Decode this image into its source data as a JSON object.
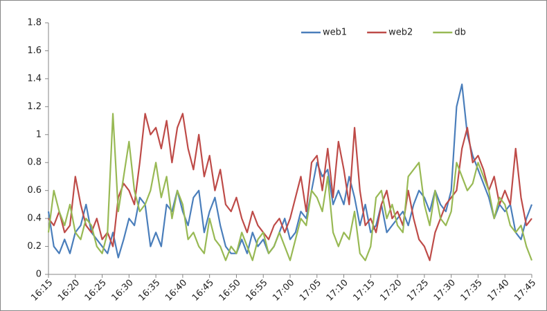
{
  "chart_data": {
    "type": "line",
    "categories": [
      "16:15",
      null,
      null,
      null,
      null,
      "16:20",
      null,
      null,
      null,
      null,
      "16:25",
      null,
      null,
      null,
      null,
      "16:30",
      null,
      null,
      null,
      null,
      "16:35",
      null,
      null,
      null,
      null,
      "16:40",
      null,
      null,
      null,
      null,
      "16:45",
      null,
      null,
      null,
      null,
      "16:50",
      null,
      null,
      null,
      null,
      "16:55",
      null,
      null,
      null,
      null,
      "17:00",
      null,
      null,
      null,
      null,
      "17:05",
      null,
      null,
      null,
      null,
      "17:10",
      null,
      null,
      null,
      null,
      "17:15",
      null,
      null,
      null,
      null,
      "17:20",
      null,
      null,
      null,
      null,
      "17:25",
      null,
      null,
      null,
      null,
      "17:30",
      null,
      null,
      null,
      null,
      "17:35",
      null,
      null,
      null,
      null,
      "17:40",
      null,
      null,
      null,
      null,
      "17:45"
    ],
    "series": [
      {
        "name": "web1",
        "color": "#4a7ebb",
        "values": [
          0.45,
          0.2,
          0.15,
          0.25,
          0.15,
          0.3,
          0.35,
          0.5,
          0.3,
          0.25,
          0.2,
          0.15,
          0.3,
          0.12,
          0.25,
          0.4,
          0.35,
          0.55,
          0.5,
          0.2,
          0.3,
          0.2,
          0.5,
          0.45,
          0.6,
          0.45,
          0.35,
          0.55,
          0.6,
          0.3,
          0.45,
          0.55,
          0.35,
          0.2,
          0.15,
          0.15,
          0.25,
          0.15,
          0.3,
          0.2,
          0.25,
          0.15,
          0.2,
          0.3,
          0.4,
          0.25,
          0.3,
          0.45,
          0.4,
          0.6,
          0.8,
          0.7,
          0.75,
          0.5,
          0.6,
          0.5,
          0.7,
          0.55,
          0.35,
          0.5,
          0.3,
          0.35,
          0.5,
          0.3,
          0.35,
          0.4,
          0.45,
          0.35,
          0.5,
          0.6,
          0.55,
          0.45,
          0.6,
          0.5,
          0.45,
          0.6,
          1.2,
          1.36,
          1.0,
          0.85,
          0.75,
          0.65,
          0.55,
          0.4,
          0.5,
          0.45,
          0.5,
          0.3,
          0.25,
          0.4,
          0.5
        ]
      },
      {
        "name": "web2",
        "color": "#be4b48",
        "values": [
          0.4,
          0.35,
          0.45,
          0.3,
          0.35,
          0.7,
          0.5,
          0.35,
          0.3,
          0.4,
          0.25,
          0.3,
          0.2,
          0.55,
          0.65,
          0.6,
          0.5,
          0.8,
          1.15,
          1.0,
          1.05,
          0.9,
          1.1,
          0.8,
          1.05,
          1.15,
          0.9,
          0.75,
          1.0,
          0.7,
          0.85,
          0.6,
          0.75,
          0.5,
          0.45,
          0.55,
          0.4,
          0.3,
          0.45,
          0.35,
          0.3,
          0.25,
          0.35,
          0.4,
          0.3,
          0.4,
          0.55,
          0.7,
          0.45,
          0.8,
          0.85,
          0.6,
          0.9,
          0.55,
          0.95,
          0.75,
          0.5,
          1.05,
          0.6,
          0.35,
          0.4,
          0.3,
          0.5,
          0.6,
          0.4,
          0.45,
          0.35,
          0.6,
          0.4,
          0.25,
          0.2,
          0.1,
          0.3,
          0.4,
          0.5,
          0.55,
          0.6,
          0.9,
          1.05,
          0.8,
          0.85,
          0.75,
          0.6,
          0.7,
          0.5,
          0.6,
          0.5,
          0.9,
          0.55,
          0.35,
          0.4
        ]
      },
      {
        "name": "db",
        "color": "#98b954",
        "values": [
          0.3,
          0.6,
          0.45,
          0.35,
          0.5,
          0.3,
          0.25,
          0.4,
          0.35,
          0.2,
          0.15,
          0.3,
          1.15,
          0.45,
          0.7,
          0.95,
          0.6,
          0.45,
          0.5,
          0.6,
          0.8,
          0.55,
          0.7,
          0.4,
          0.6,
          0.5,
          0.25,
          0.3,
          0.2,
          0.15,
          0.4,
          0.25,
          0.2,
          0.1,
          0.2,
          0.15,
          0.3,
          0.2,
          0.1,
          0.25,
          0.3,
          0.15,
          0.2,
          0.3,
          0.2,
          0.1,
          0.25,
          0.4,
          0.35,
          0.6,
          0.55,
          0.45,
          0.7,
          0.3,
          0.2,
          0.3,
          0.25,
          0.45,
          0.15,
          0.1,
          0.2,
          0.55,
          0.6,
          0.4,
          0.5,
          0.35,
          0.3,
          0.7,
          0.75,
          0.8,
          0.5,
          0.35,
          0.6,
          0.4,
          0.35,
          0.45,
          0.8,
          0.7,
          0.6,
          0.65,
          0.8,
          0.7,
          0.6,
          0.4,
          0.55,
          0.5,
          0.35,
          0.3,
          0.35,
          0.2,
          0.1
        ]
      }
    ],
    "ylim": [
      0,
      1.8
    ],
    "yticks": [
      0,
      0.2,
      0.4,
      0.6,
      0.8,
      1,
      1.2,
      1.4,
      1.6,
      1.8
    ],
    "grid": false,
    "legend": "top-right"
  }
}
